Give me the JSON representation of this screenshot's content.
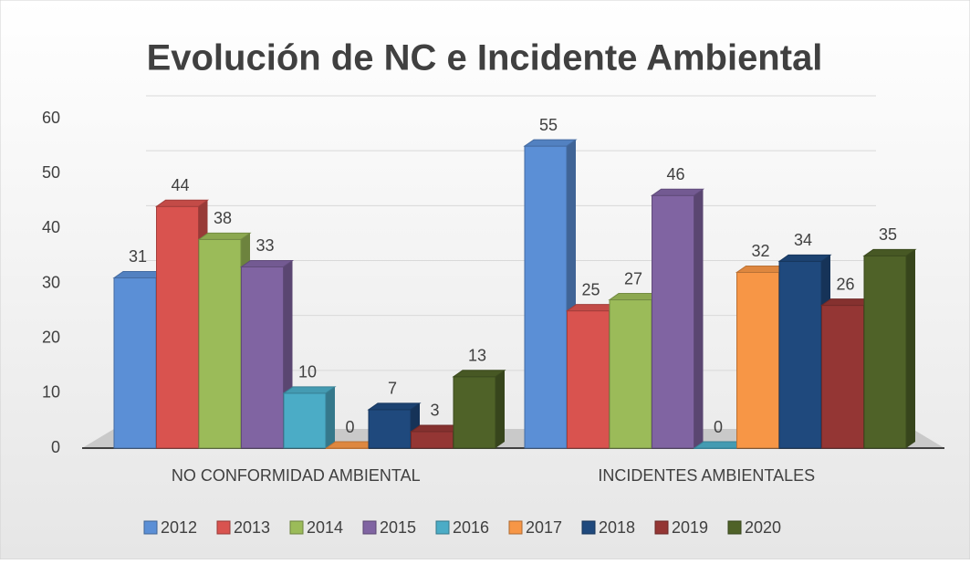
{
  "chart_data": {
    "type": "bar3d",
    "title": "Evolución de NC e Incidente Ambiental",
    "categories": [
      "NO CONFORMIDAD AMBIENTAL",
      "INCIDENTES AMBIENTALES"
    ],
    "series": [
      {
        "name": "2012",
        "color": "#5b8fd6",
        "values": [
          31,
          55
        ]
      },
      {
        "name": "2013",
        "color": "#d9534f",
        "values": [
          44,
          25
        ]
      },
      {
        "name": "2014",
        "color": "#9bbb59",
        "values": [
          38,
          27
        ]
      },
      {
        "name": "2015",
        "color": "#8064a2",
        "values": [
          33,
          46
        ]
      },
      {
        "name": "2016",
        "color": "#4bacc6",
        "values": [
          10,
          0
        ]
      },
      {
        "name": "2017",
        "color": "#f79646",
        "values": [
          0,
          32
        ]
      },
      {
        "name": "2018",
        "color": "#1f497d",
        "values": [
          7,
          34
        ]
      },
      {
        "name": "2019",
        "color": "#943634",
        "values": [
          3,
          26
        ]
      },
      {
        "name": "2020",
        "color": "#4f6228",
        "values": [
          13,
          35
        ]
      }
    ],
    "ylim": [
      0,
      60
    ],
    "yticks": [
      0,
      10,
      20,
      30,
      40,
      50,
      60
    ],
    "grid": true,
    "legend": "bottom"
  }
}
